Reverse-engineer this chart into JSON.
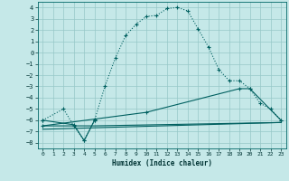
{
  "xlabel": "Humidex (Indice chaleur)",
  "bg_color": "#c5e8e8",
  "grid_color": "#96c8c8",
  "line_color": "#006060",
  "xlim": [
    -0.5,
    23.5
  ],
  "ylim": [
    -8.5,
    4.5
  ],
  "xticks": [
    0,
    1,
    2,
    3,
    4,
    5,
    6,
    7,
    8,
    9,
    10,
    11,
    12,
    13,
    14,
    15,
    16,
    17,
    18,
    19,
    20,
    21,
    22,
    23
  ],
  "yticks": [
    -8,
    -7,
    -6,
    -5,
    -4,
    -3,
    -2,
    -1,
    0,
    1,
    2,
    3,
    4
  ],
  "line1_x": [
    0,
    2,
    3,
    4,
    5,
    6,
    7,
    8,
    9,
    10,
    11,
    12,
    13,
    14,
    15,
    16,
    17,
    18,
    19,
    20,
    21,
    22,
    23
  ],
  "line1_y": [
    -6.0,
    -5.0,
    -6.5,
    -7.8,
    -6.0,
    -3.0,
    -0.5,
    1.5,
    2.5,
    3.2,
    3.3,
    3.9,
    4.0,
    3.7,
    2.1,
    0.5,
    -1.5,
    -2.5,
    -2.5,
    -3.2,
    -4.5,
    -5.0,
    -6.0
  ],
  "line2_x": [
    0,
    3,
    4,
    5
  ],
  "line2_y": [
    -6.0,
    -6.4,
    -7.8,
    -6.0
  ],
  "line3_x": [
    0,
    5,
    23
  ],
  "line3_y": [
    -6.5,
    -6.5,
    -6.2
  ],
  "line4_x": [
    0,
    5,
    10,
    19,
    20,
    23
  ],
  "line4_y": [
    -6.5,
    -5.9,
    -5.3,
    -3.2,
    -3.2,
    -6.0
  ],
  "line5_x": [
    0,
    23
  ],
  "line5_y": [
    -6.8,
    -6.2
  ]
}
